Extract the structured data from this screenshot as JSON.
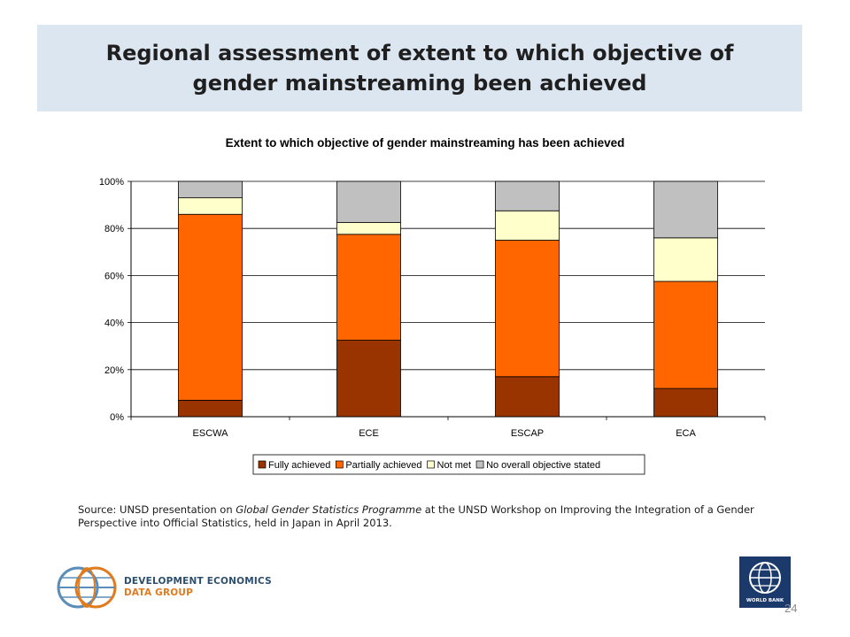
{
  "slide": {
    "title": "Regional assessment of extent to which objective of gender mainstreaming been achieved",
    "source_prefix": "Source: UNSD presentation on ",
    "source_italic": "Global Gender Statistics Programme",
    "source_suffix": " at the UNSD Workshop on Improving the Integration of a Gender Perspective into Official Statistics, held in Japan in April 2013.",
    "logo_line1": "DEVELOPMENT ECONOMICS",
    "logo_line2": "DATA GROUP",
    "wb_label": "WORLD BANK",
    "page_number": "24"
  },
  "chart_data": {
    "type": "bar",
    "stacked": true,
    "title": "Extent to which objective of gender mainstreaming has been achieved",
    "categories": [
      "ESCWA",
      "ECE",
      "ESCAP",
      "ECA"
    ],
    "y_ticks": [
      "0%",
      "20%",
      "40%",
      "60%",
      "80%",
      "100%"
    ],
    "ylim": [
      0,
      100
    ],
    "grid": true,
    "legend_position": "bottom",
    "series": [
      {
        "name": "Fully achieved",
        "color": "#993300",
        "values": [
          7,
          32.5,
          17,
          12
        ]
      },
      {
        "name": "Partially achieved",
        "color": "#ff6600",
        "values": [
          79,
          45,
          58,
          45.5
        ]
      },
      {
        "name": "Not met",
        "color": "#ffffcc",
        "values": [
          7,
          5,
          12.5,
          18.5
        ]
      },
      {
        "name": "No overall objective stated",
        "color": "#c0c0c0",
        "values": [
          7,
          17.5,
          12.5,
          24
        ]
      }
    ]
  }
}
